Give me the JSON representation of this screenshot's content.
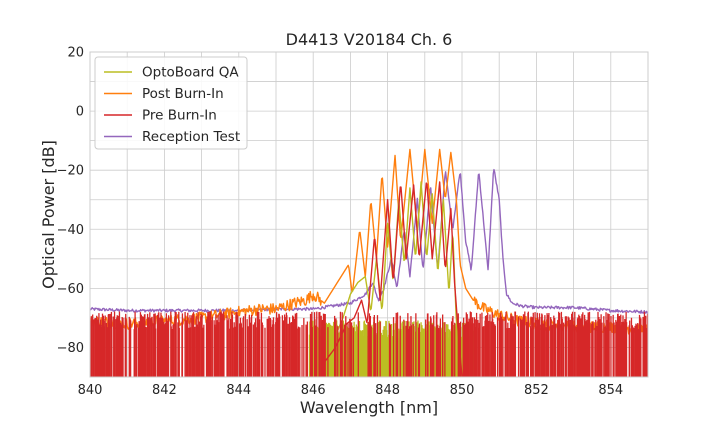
{
  "chart_data": {
    "type": "line",
    "title": "D4413 V20184 Ch. 6",
    "xlabel": "Wavelength [nm]",
    "ylabel": "Optical Power [dB]",
    "xlim": [
      840,
      855
    ],
    "ylim": [
      -90,
      20
    ],
    "xticks": [
      840,
      842,
      844,
      846,
      848,
      850,
      852,
      854
    ],
    "yticks": [
      20,
      0,
      -20,
      -40,
      -60,
      -80
    ],
    "xtick_labels": [
      "840",
      "842",
      "844",
      "846",
      "848",
      "850",
      "852",
      "854"
    ],
    "ytick_labels": [
      "20",
      "0",
      "−20",
      "−40",
      "−60",
      "−80"
    ],
    "grid": true,
    "legend_position": "top-left",
    "series": [
      {
        "name": "OptoBoard QA",
        "color": "#bcbd22",
        "noise_floor": -90,
        "noise_span": [
          845.9,
          850.3
        ],
        "noise_top": -75,
        "noise_density": 0.85,
        "points": [
          [
            845.9,
            -90
          ],
          [
            846.3,
            -82
          ],
          [
            846.6,
            -76
          ],
          [
            846.8,
            -70
          ],
          [
            847.0,
            -62
          ],
          [
            847.2,
            -58
          ],
          [
            847.4,
            -56
          ],
          [
            847.55,
            -68
          ],
          [
            847.7,
            -50
          ],
          [
            847.85,
            -68
          ],
          [
            848.0,
            -38
          ],
          [
            848.15,
            -58
          ],
          [
            848.3,
            -30
          ],
          [
            848.45,
            -52
          ],
          [
            848.6,
            -26
          ],
          [
            848.75,
            -50
          ],
          [
            848.9,
            -24
          ],
          [
            849.05,
            -50
          ],
          [
            849.2,
            -28
          ],
          [
            849.35,
            -55
          ],
          [
            849.5,
            -30
          ],
          [
            849.65,
            -62
          ],
          [
            849.75,
            -40
          ],
          [
            849.85,
            -72
          ],
          [
            850.0,
            -84
          ],
          [
            850.3,
            -90
          ]
        ]
      },
      {
        "name": "Post Burn-In",
        "color": "#ff7f0e",
        "noise_level": -70,
        "noise_spread": 4,
        "points": [
          [
            840.0,
            -71
          ],
          [
            841.0,
            -72
          ],
          [
            842.0,
            -71
          ],
          [
            843.0,
            -70
          ],
          [
            844.0,
            -68
          ],
          [
            844.6,
            -67
          ],
          [
            845.0,
            -67
          ],
          [
            845.5,
            -65
          ],
          [
            845.8,
            -64
          ],
          [
            846.0,
            -62
          ],
          [
            846.3,
            -65
          ],
          [
            846.5,
            -61
          ],
          [
            846.75,
            -56
          ],
          [
            846.95,
            -52
          ],
          [
            847.05,
            -62
          ],
          [
            847.25,
            -40
          ],
          [
            847.4,
            -56
          ],
          [
            847.55,
            -30
          ],
          [
            847.7,
            -50
          ],
          [
            847.85,
            -21
          ],
          [
            848.0,
            -46
          ],
          [
            848.2,
            -15
          ],
          [
            848.35,
            -44
          ],
          [
            848.6,
            -13
          ],
          [
            848.8,
            -40
          ],
          [
            849.0,
            -13
          ],
          [
            849.2,
            -38
          ],
          [
            849.4,
            -13
          ],
          [
            849.55,
            -30
          ],
          [
            849.7,
            -14
          ],
          [
            849.85,
            -30
          ],
          [
            849.95,
            -52
          ],
          [
            850.1,
            -60
          ],
          [
            850.3,
            -64
          ],
          [
            850.6,
            -67
          ],
          [
            851.0,
            -69
          ],
          [
            851.5,
            -71
          ],
          [
            852.0,
            -72
          ],
          [
            853.0,
            -73
          ],
          [
            854.0,
            -73
          ],
          [
            855.0,
            -74
          ]
        ]
      },
      {
        "name": "Pre Burn-In",
        "color": "#d62728",
        "noise_floor": -90,
        "noise_top": -72,
        "noise_density": 0.55,
        "noise_span": [
          840.0,
          855.0
        ],
        "peak_span": [
          846.3,
          850.0
        ],
        "points": [
          [
            846.3,
            -85
          ],
          [
            846.6,
            -80
          ],
          [
            846.9,
            -72
          ],
          [
            847.1,
            -70
          ],
          [
            847.3,
            -64
          ],
          [
            847.45,
            -72
          ],
          [
            847.65,
            -42
          ],
          [
            847.8,
            -64
          ],
          [
            848.0,
            -30
          ],
          [
            848.15,
            -58
          ],
          [
            848.35,
            -24
          ],
          [
            848.5,
            -50
          ],
          [
            848.7,
            -25
          ],
          [
            848.85,
            -50
          ],
          [
            849.05,
            -23
          ],
          [
            849.2,
            -50
          ],
          [
            849.4,
            -24
          ],
          [
            849.55,
            -54
          ],
          [
            849.7,
            -33
          ],
          [
            849.8,
            -58
          ],
          [
            849.9,
            -75
          ],
          [
            850.0,
            -90
          ]
        ]
      },
      {
        "name": "Reception Test",
        "color": "#9467bd",
        "points": [
          [
            840.0,
            -67
          ],
          [
            841.0,
            -67.5
          ],
          [
            842.0,
            -67.5
          ],
          [
            843.0,
            -67.5
          ],
          [
            844.0,
            -67.5
          ],
          [
            845.0,
            -67
          ],
          [
            846.0,
            -67
          ],
          [
            846.5,
            -66
          ],
          [
            847.0,
            -65
          ],
          [
            847.4,
            -62
          ],
          [
            847.6,
            -58
          ],
          [
            847.75,
            -64
          ],
          [
            847.9,
            -60
          ],
          [
            848.1,
            -50
          ],
          [
            848.25,
            -60
          ],
          [
            848.45,
            -40
          ],
          [
            848.6,
            -56
          ],
          [
            848.8,
            -30
          ],
          [
            848.95,
            -54
          ],
          [
            849.15,
            -25
          ],
          [
            849.35,
            -54
          ],
          [
            849.55,
            -20
          ],
          [
            849.75,
            -40
          ],
          [
            849.95,
            -20
          ],
          [
            850.1,
            -44
          ],
          [
            850.25,
            -54
          ],
          [
            850.45,
            -20
          ],
          [
            850.6,
            -40
          ],
          [
            850.7,
            -54
          ],
          [
            850.85,
            -19
          ],
          [
            851.0,
            -30
          ],
          [
            851.1,
            -50
          ],
          [
            851.2,
            -62
          ],
          [
            851.35,
            -65
          ],
          [
            851.6,
            -66
          ],
          [
            852.0,
            -66.5
          ],
          [
            853.0,
            -66.5
          ],
          [
            854.0,
            -67.5
          ],
          [
            855.0,
            -68
          ]
        ]
      }
    ]
  }
}
